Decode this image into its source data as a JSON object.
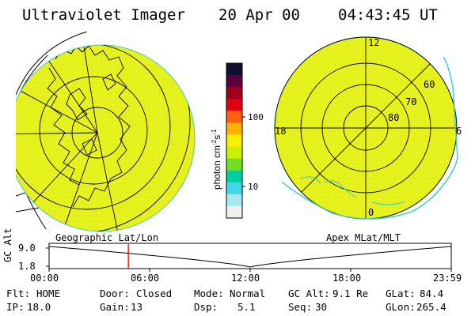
{
  "header": {
    "title": "Ultraviolet Imager",
    "date": "20 Apr 00",
    "time": "04:43:45 UT"
  },
  "colorbar": {
    "unit_label": "photon cm",
    "unit_sup1": "-2",
    "unit_mid": "s",
    "unit_sup2": "-1",
    "ticks": [
      "100",
      "10"
    ],
    "colors": [
      "#101030",
      "#5a0040",
      "#a00018",
      "#e00010",
      "#ff6010",
      "#ffb000",
      "#f8f000",
      "#c8f000",
      "#70e020",
      "#00d0a0",
      "#40d8e8",
      "#a8e8f0",
      "#f0f0f0"
    ]
  },
  "geo_panel": {
    "label": "Geographic Lat/Lon",
    "fill_color": "#e6f21c"
  },
  "apex_panel": {
    "label": "Apex MLat/MLT",
    "lat_labels": [
      "60",
      "70",
      "80"
    ],
    "mlt_labels": [
      "12",
      "18",
      "6",
      "0"
    ],
    "fill_color": "#e6f21c"
  },
  "altitude_plot": {
    "ylabel": "GC Alt",
    "y_ticks": [
      "9.0",
      "1.8"
    ],
    "x_ticks": [
      "00:00",
      "06:00",
      "12:00",
      "18:00",
      "23:59"
    ],
    "current_time_hours": 4.73,
    "marker_color": "#e00000"
  },
  "status": {
    "row1": {
      "flt_label": "Flt:",
      "flt_value": "HOME",
      "door_label": "Door:",
      "door_value": "Closed",
      "mode_label": "Mode:",
      "mode_value": "Normal",
      "gcalt_label": "GC Alt:",
      "gcalt_value": "9.1 Re",
      "glat_label": "GLat:",
      "glat_value": "84.4"
    },
    "row2": {
      "ip_label": "IP:",
      "ip_value": "18.0",
      "gain_label": "Gain:",
      "gain_value": "13",
      "dsp_label": "Dsp:",
      "dsp_value": "5.1",
      "seq_label": "Seq:",
      "seq_value": "30",
      "glon_label": "GLon:",
      "glon_value": "265.4"
    }
  }
}
